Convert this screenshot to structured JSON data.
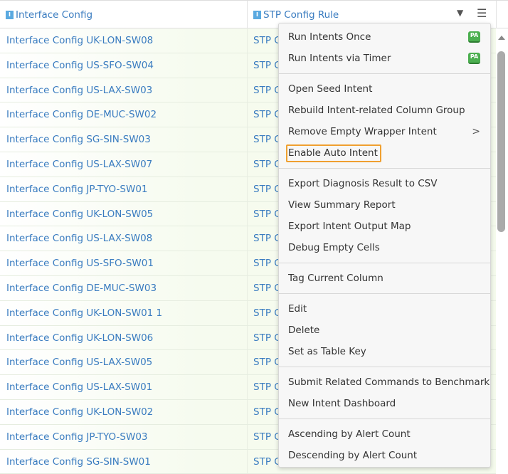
{
  "header": {
    "col1": "Interface Config",
    "col2": "STP Config Rule",
    "col_icon": "I",
    "filter_icon": "▼",
    "menu_icon": "☰"
  },
  "rows": [
    {
      "c1": "Interface Config UK-LON-SW08",
      "c2": "STP C"
    },
    {
      "c1": "Interface Config US-SFO-SW04",
      "c2": "STP C"
    },
    {
      "c1": "Interface Config US-LAX-SW03",
      "c2": "STP C"
    },
    {
      "c1": "Interface Config DE-MUC-SW02",
      "c2": "STP C"
    },
    {
      "c1": "Interface Config SG-SIN-SW03",
      "c2": "STP C"
    },
    {
      "c1": "Interface Config US-LAX-SW07",
      "c2": "STP C"
    },
    {
      "c1": "Interface Config JP-TYO-SW01",
      "c2": "STP C"
    },
    {
      "c1": "Interface Config UK-LON-SW05",
      "c2": "STP C"
    },
    {
      "c1": "Interface Config US-LAX-SW08",
      "c2": "STP C"
    },
    {
      "c1": "Interface Config US-SFO-SW01",
      "c2": "STP C"
    },
    {
      "c1": "Interface Config DE-MUC-SW03",
      "c2": "STP C"
    },
    {
      "c1": "Interface Config UK-LON-SW01 1",
      "c2": "STP C"
    },
    {
      "c1": "Interface Config UK-LON-SW06",
      "c2": "STP C"
    },
    {
      "c1": "Interface Config US-LAX-SW05",
      "c2": "STP C"
    },
    {
      "c1": "Interface Config US-LAX-SW01",
      "c2": "STP C"
    },
    {
      "c1": "Interface Config UK-LON-SW02",
      "c2": "STP C"
    },
    {
      "c1": "Interface Config JP-TYO-SW03",
      "c2": "STP C"
    },
    {
      "c1": "Interface Config SG-SIN-SW01",
      "c2": "STP C"
    }
  ],
  "menu": {
    "pa_badge": "PA",
    "groups": [
      [
        "Run Intents Once",
        "Run Intents via Timer"
      ],
      [
        "Open Seed Intent",
        "Rebuild Intent-related Column Group",
        "Remove Empty Wrapper Intent",
        "Enable Auto Intent"
      ],
      [
        "Export Diagnosis Result to CSV",
        "View Summary Report",
        "Export Intent Output Map",
        "Debug Empty Cells"
      ],
      [
        "Tag Current Column"
      ],
      [
        "Edit",
        "Delete",
        "Set as Table Key"
      ],
      [
        "Submit Related Commands to Benchmark",
        "New Intent Dashboard"
      ],
      [
        "Ascending by Alert Count",
        "Descending by Alert Count"
      ]
    ],
    "submenu_chevron": ">",
    "highlighted": "Enable Auto Intent",
    "highlight_color": "#f0a030"
  }
}
